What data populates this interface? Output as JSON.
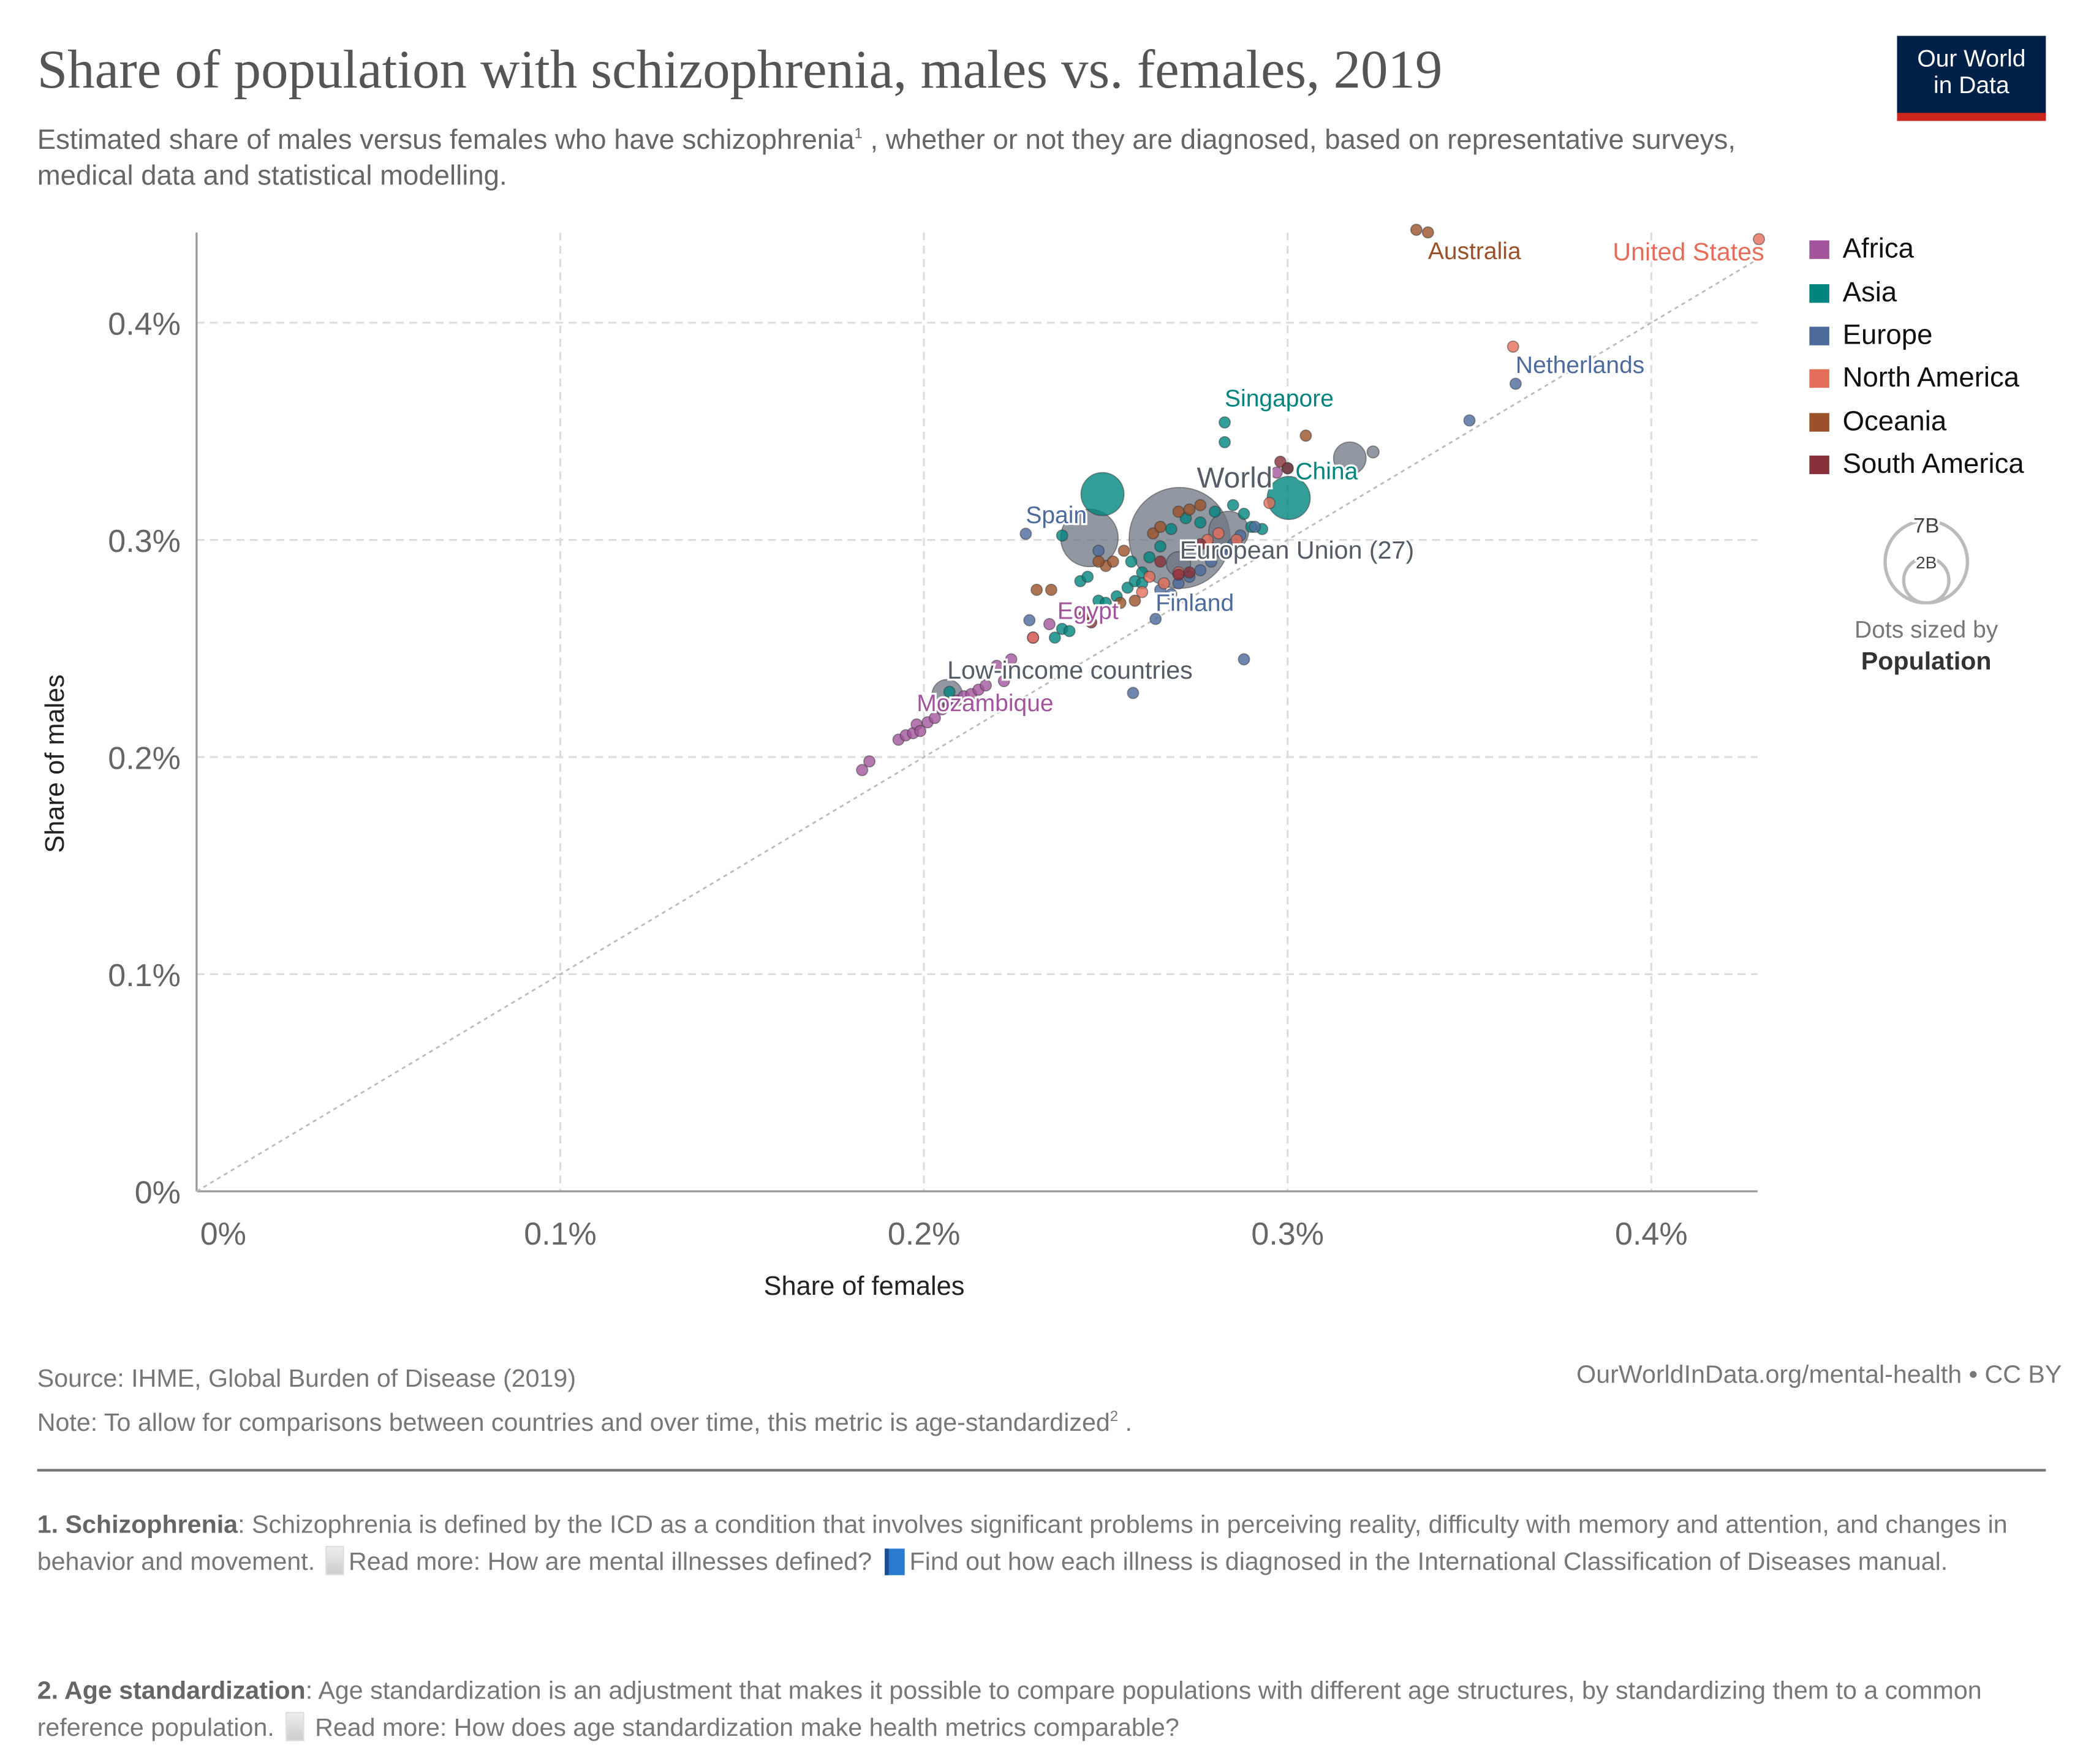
{
  "header": {
    "title": "Share of population with schizophrenia, males vs. females, 2019",
    "subtitle_a": "Estimated share of males versus females who have schizophrenia",
    "subtitle_sup": "1",
    "subtitle_b": " , whether or not they are diagnosed, based on representative surveys, medical data and statistical modelling.",
    "logo_line1": "Our World",
    "logo_line2": "in Data"
  },
  "colors": {
    "Africa": "#a2559c",
    "Asia": "#00847e",
    "Europe": "#4c6a9c",
    "North America": "#e56e5a",
    "Oceania": "#9a5129",
    "South America": "#883039",
    "Aggregate": "#6e7581",
    "logo_bg": "#002147",
    "logo_bar": "#ce261e"
  },
  "legend": {
    "items": [
      "Africa",
      "Asia",
      "Europe",
      "North America",
      "Oceania",
      "South America"
    ],
    "size_big": "7B",
    "size_small": "2B",
    "size_caption": "Dots sized by",
    "size_variable": "Population"
  },
  "chart_data": {
    "type": "scatter",
    "xlabel": "Share of females",
    "ylabel": "Share of males",
    "xlim": [
      0,
      0.43
    ],
    "ylim": [
      0,
      0.442
    ],
    "x_ticks": [
      {
        "v": 0,
        "label": "0%"
      },
      {
        "v": 0.1,
        "label": "0.1%"
      },
      {
        "v": 0.2,
        "label": "0.2%"
      },
      {
        "v": 0.3,
        "label": "0.3%"
      },
      {
        "v": 0.4,
        "label": "0.4%"
      }
    ],
    "y_ticks": [
      {
        "v": 0,
        "label": "0%"
      },
      {
        "v": 0.1,
        "label": "0.1%"
      },
      {
        "v": 0.2,
        "label": "0.2%"
      },
      {
        "v": 0.3,
        "label": "0.3%"
      },
      {
        "v": 0.4,
        "label": "0.4%"
      }
    ],
    "grid": true,
    "reference_line": "y = x",
    "size_by": "population",
    "legend_position": "right",
    "points": [
      {
        "x": 0.2703,
        "y": 0.3009,
        "r": "Aggregate",
        "pop": 7.7,
        "label": "World"
      },
      {
        "x": 0.2455,
        "y": 0.3009,
        "r": "Aggregate",
        "pop": 2.5
      },
      {
        "x": 0.2838,
        "y": 0.304,
        "r": "Aggregate",
        "pop": 1.2
      },
      {
        "x": 0.3171,
        "y": 0.3376,
        "r": "Aggregate",
        "pop": 0.8
      },
      {
        "x": 0.3235,
        "y": 0.3405,
        "r": "Aggregate",
        "pop": 0.05
      },
      {
        "x": 0.2064,
        "y": 0.2287,
        "r": "Aggregate",
        "pop": 0.7,
        "label": "Low-income countries"
      },
      {
        "x": 0.27,
        "y": 0.289,
        "r": "Aggregate",
        "pop": 0.447,
        "label": "European Union (27)"
      },
      {
        "x": 0.2491,
        "y": 0.3211,
        "r": "Asia",
        "pop": 1.4
      },
      {
        "x": 0.3003,
        "y": 0.3193,
        "r": "Asia",
        "pop": 1.4,
        "label": "China"
      },
      {
        "x": 0.2827,
        "y": 0.3541,
        "r": "Asia",
        "label": "Singapore"
      },
      {
        "x": 0.2827,
        "y": 0.345,
        "r": "Asia"
      },
      {
        "x": 0.207,
        "y": 0.23,
        "r": "Asia"
      },
      {
        "x": 0.236,
        "y": 0.255,
        "r": "Asia"
      },
      {
        "x": 0.238,
        "y": 0.259,
        "r": "Asia"
      },
      {
        "x": 0.24,
        "y": 0.258,
        "r": "Asia"
      },
      {
        "x": 0.243,
        "y": 0.281,
        "r": "Asia"
      },
      {
        "x": 0.245,
        "y": 0.283,
        "r": "Asia"
      },
      {
        "x": 0.248,
        "y": 0.272,
        "r": "Asia"
      },
      {
        "x": 0.25,
        "y": 0.271,
        "r": "Asia"
      },
      {
        "x": 0.253,
        "y": 0.274,
        "r": "Asia"
      },
      {
        "x": 0.256,
        "y": 0.278,
        "r": "Asia"
      },
      {
        "x": 0.258,
        "y": 0.281,
        "r": "Asia"
      },
      {
        "x": 0.26,
        "y": 0.285,
        "r": "Asia"
      },
      {
        "x": 0.262,
        "y": 0.292,
        "r": "Asia"
      },
      {
        "x": 0.265,
        "y": 0.297,
        "r": "Asia"
      },
      {
        "x": 0.268,
        "y": 0.305,
        "r": "Asia"
      },
      {
        "x": 0.272,
        "y": 0.31,
        "r": "Asia"
      },
      {
        "x": 0.276,
        "y": 0.308,
        "r": "Asia"
      },
      {
        "x": 0.28,
        "y": 0.313,
        "r": "Asia"
      },
      {
        "x": 0.285,
        "y": 0.316,
        "r": "Asia"
      },
      {
        "x": 0.288,
        "y": 0.312,
        "r": "Asia"
      },
      {
        "x": 0.29,
        "y": 0.306,
        "r": "Asia"
      },
      {
        "x": 0.293,
        "y": 0.305,
        "r": "Asia"
      },
      {
        "x": 0.3,
        "y": 0.333,
        "r": "Asia"
      },
      {
        "x": 0.238,
        "y": 0.302,
        "r": "Asia"
      },
      {
        "x": 0.26,
        "y": 0.28,
        "r": "Asia"
      },
      {
        "x": 0.257,
        "y": 0.29,
        "r": "Asia"
      },
      {
        "x": 0.183,
        "y": 0.194,
        "r": "Africa"
      },
      {
        "x": 0.185,
        "y": 0.198,
        "r": "Africa"
      },
      {
        "x": 0.193,
        "y": 0.208,
        "r": "Africa"
      },
      {
        "x": 0.195,
        "y": 0.21,
        "r": "Africa"
      },
      {
        "x": 0.197,
        "y": 0.211,
        "r": "Africa"
      },
      {
        "x": 0.198,
        "y": 0.215,
        "r": "Africa",
        "label": "Mozambique"
      },
      {
        "x": 0.199,
        "y": 0.212,
        "r": "Africa"
      },
      {
        "x": 0.201,
        "y": 0.216,
        "r": "Africa"
      },
      {
        "x": 0.203,
        "y": 0.218,
        "r": "Africa"
      },
      {
        "x": 0.205,
        "y": 0.222,
        "r": "Africa"
      },
      {
        "x": 0.207,
        "y": 0.224,
        "r": "Africa"
      },
      {
        "x": 0.209,
        "y": 0.226,
        "r": "Africa"
      },
      {
        "x": 0.211,
        "y": 0.228,
        "r": "Africa"
      },
      {
        "x": 0.213,
        "y": 0.229,
        "r": "Africa"
      },
      {
        "x": 0.215,
        "y": 0.231,
        "r": "Africa"
      },
      {
        "x": 0.217,
        "y": 0.233,
        "r": "Africa"
      },
      {
        "x": 0.22,
        "y": 0.242,
        "r": "Africa"
      },
      {
        "x": 0.222,
        "y": 0.235,
        "r": "Africa"
      },
      {
        "x": 0.224,
        "y": 0.245,
        "r": "Africa"
      },
      {
        "x": 0.23,
        "y": 0.255,
        "r": "Africa"
      },
      {
        "x": 0.2345,
        "y": 0.2612,
        "r": "Africa",
        "label": "Egypt"
      },
      {
        "x": 0.297,
        "y": 0.331,
        "r": "Africa"
      },
      {
        "x": 0.228,
        "y": 0.3028,
        "r": "Europe",
        "label": "Spain"
      },
      {
        "x": 0.2637,
        "y": 0.2636,
        "r": "Europe",
        "label": "Finland"
      },
      {
        "x": 0.3627,
        "y": 0.3719,
        "r": "Europe",
        "label": "Netherlands"
      },
      {
        "x": 0.35,
        "y": 0.355,
        "r": "Europe"
      },
      {
        "x": 0.288,
        "y": 0.245,
        "r": "Europe"
      },
      {
        "x": 0.2575,
        "y": 0.2295,
        "r": "Europe"
      },
      {
        "x": 0.229,
        "y": 0.263,
        "r": "Europe"
      },
      {
        "x": 0.248,
        "y": 0.295,
        "r": "Europe"
      },
      {
        "x": 0.27,
        "y": 0.28,
        "r": "Europe"
      },
      {
        "x": 0.273,
        "y": 0.283,
        "r": "Europe"
      },
      {
        "x": 0.276,
        "y": 0.286,
        "r": "Europe"
      },
      {
        "x": 0.279,
        "y": 0.29,
        "r": "Europe"
      },
      {
        "x": 0.282,
        "y": 0.294,
        "r": "Europe"
      },
      {
        "x": 0.285,
        "y": 0.298,
        "r": "Europe"
      },
      {
        "x": 0.287,
        "y": 0.302,
        "r": "Europe"
      },
      {
        "x": 0.265,
        "y": 0.277,
        "r": "Europe"
      },
      {
        "x": 0.268,
        "y": 0.275,
        "r": "Europe"
      },
      {
        "x": 0.291,
        "y": 0.306,
        "r": "Europe"
      },
      {
        "x": 0.4296,
        "y": 0.4385,
        "r": "North America",
        "label": "United States"
      },
      {
        "x": 0.362,
        "y": 0.389,
        "r": "North America"
      },
      {
        "x": 0.295,
        "y": 0.317,
        "r": "North America"
      },
      {
        "x": 0.23,
        "y": 0.255,
        "r": "North America"
      },
      {
        "x": 0.262,
        "y": 0.283,
        "r": "North America"
      },
      {
        "x": 0.266,
        "y": 0.28,
        "r": "North America"
      },
      {
        "x": 0.27,
        "y": 0.285,
        "r": "North America"
      },
      {
        "x": 0.278,
        "y": 0.3,
        "r": "North America"
      },
      {
        "x": 0.286,
        "y": 0.3,
        "r": "North America"
      },
      {
        "x": 0.26,
        "y": 0.276,
        "r": "North America"
      },
      {
        "x": 0.281,
        "y": 0.303,
        "r": "North America"
      },
      {
        "x": 0.3354,
        "y": 0.4428,
        "r": "Oceania"
      },
      {
        "x": 0.3386,
        "y": 0.4416,
        "r": "Oceania",
        "label": "Australia"
      },
      {
        "x": 0.305,
        "y": 0.348,
        "r": "Oceania"
      },
      {
        "x": 0.231,
        "y": 0.277,
        "r": "Oceania"
      },
      {
        "x": 0.235,
        "y": 0.277,
        "r": "Oceania"
      },
      {
        "x": 0.25,
        "y": 0.288,
        "r": "Oceania"
      },
      {
        "x": 0.252,
        "y": 0.29,
        "r": "Oceania"
      },
      {
        "x": 0.255,
        "y": 0.295,
        "r": "Oceania"
      },
      {
        "x": 0.248,
        "y": 0.29,
        "r": "Oceania"
      },
      {
        "x": 0.263,
        "y": 0.303,
        "r": "Oceania"
      },
      {
        "x": 0.265,
        "y": 0.306,
        "r": "Oceania"
      },
      {
        "x": 0.27,
        "y": 0.313,
        "r": "Oceania"
      },
      {
        "x": 0.273,
        "y": 0.314,
        "r": "Oceania"
      },
      {
        "x": 0.276,
        "y": 0.316,
        "r": "Oceania"
      },
      {
        "x": 0.258,
        "y": 0.272,
        "r": "Oceania"
      },
      {
        "x": 0.254,
        "y": 0.271,
        "r": "Oceania"
      },
      {
        "x": 0.298,
        "y": 0.336,
        "r": "South America"
      },
      {
        "x": 0.3,
        "y": 0.333,
        "r": "South America"
      },
      {
        "x": 0.265,
        "y": 0.29,
        "r": "South America"
      },
      {
        "x": 0.27,
        "y": 0.284,
        "r": "South America"
      },
      {
        "x": 0.273,
        "y": 0.285,
        "r": "South America"
      },
      {
        "x": 0.244,
        "y": 0.265,
        "r": "South America"
      },
      {
        "x": 0.246,
        "y": 0.262,
        "r": "South America"
      },
      {
        "x": 0.276,
        "y": 0.298,
        "r": "South America"
      }
    ]
  },
  "footer": {
    "source": "Source: IHME, Global Burden of Disease (2019)",
    "note_a": "Note: To allow for comparisons between countries and over time, this metric is  age-standardized",
    "note_sup": "2",
    "note_b": " .",
    "url": "OurWorldInData.org/mental-health • CC BY",
    "fn1_title": "1. Schizophrenia",
    "fn1_text": ": Schizophrenia is defined by the ICD as a condition that involves significant problems in perceiving reality, difficulty with memory and attention, and changes in behavior and movement.",
    "fn1_link1": "Read more: How are mental illnesses defined?",
    "fn1_link2": "Find out how each illness is diagnosed in the International Classification of Diseases manual.",
    "fn2_title": "2. Age standardization",
    "fn2_text": ": Age standardization is an adjustment that makes it possible to compare populations with different age structures, by standardizing them to a common reference population.",
    "fn2_link": " Read more: How does age standardization make health metrics comparable?"
  }
}
